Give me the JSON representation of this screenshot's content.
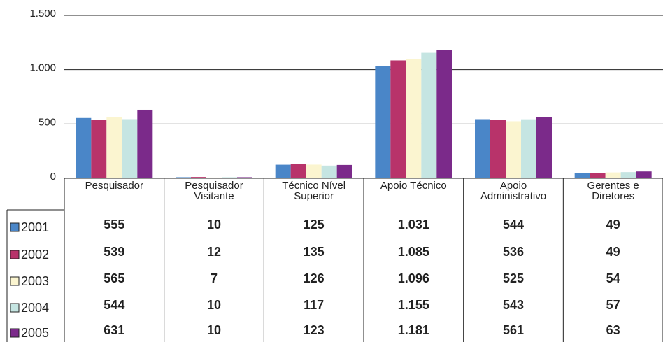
{
  "chart_data": {
    "type": "bar",
    "categories": [
      "Pesquisador",
      "Pesquisador Visitante",
      "Técnico Nível Superior",
      "Apoio Técnico",
      "Apoio Administrativo",
      "Gerentes e Diretores"
    ],
    "series": [
      {
        "name": "2001",
        "color": "#4a86c8",
        "values": [
          555,
          10,
          125,
          1031,
          544,
          49
        ],
        "value_labels": [
          "555",
          "10",
          "125",
          "1.031",
          "544",
          "49"
        ]
      },
      {
        "name": "2002",
        "color": "#b8336a",
        "values": [
          539,
          12,
          135,
          1085,
          536,
          49
        ],
        "value_labels": [
          "539",
          "12",
          "135",
          "1.085",
          "536",
          "49"
        ]
      },
      {
        "name": "2003",
        "color": "#fbf5d0",
        "values": [
          565,
          7,
          126,
          1096,
          525,
          54
        ],
        "value_labels": [
          "565",
          "7",
          "126",
          "1.096",
          "525",
          "54"
        ]
      },
      {
        "name": "2004",
        "color": "#c5e5e2",
        "values": [
          544,
          10,
          117,
          1155,
          543,
          57
        ],
        "value_labels": [
          "544",
          "10",
          "117",
          "1.155",
          "543",
          "57"
        ]
      },
      {
        "name": "2005",
        "color": "#7b2a8a",
        "values": [
          631,
          10,
          123,
          1181,
          561,
          63
        ],
        "value_labels": [
          "631",
          "10",
          "123",
          "1.181",
          "561",
          "63"
        ]
      }
    ],
    "ylim": [
      0,
      1500
    ],
    "yticks": [
      0,
      500,
      {
        "value": 1000,
        "label": "1.000"
      },
      {
        "value": 1500,
        "label": "1.500"
      }
    ],
    "grid": true
  }
}
